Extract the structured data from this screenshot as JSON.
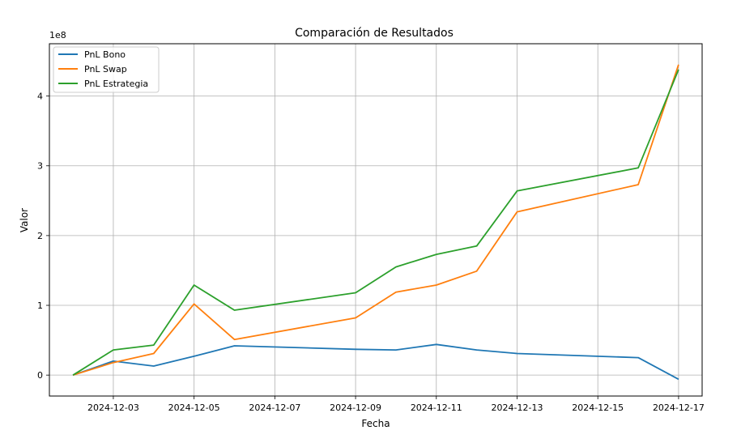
{
  "chart_data": {
    "type": "line",
    "title": "Comparación de Resultados",
    "xlabel": "Fecha",
    "ylabel": "Valor",
    "y_scale_label": "1e8",
    "y_unit_multiplier": 100000000,
    "x": [
      "2024-12-02",
      "2024-12-03",
      "2024-12-04",
      "2024-12-05",
      "2024-12-06",
      "2024-12-09",
      "2024-12-10",
      "2024-12-11",
      "2024-12-12",
      "2024-12-13",
      "2024-12-16",
      "2024-12-17"
    ],
    "xlim": [
      "2024-12-01T10:00",
      "2024-12-17T14:00"
    ],
    "x_ticks": [
      "2024-12-03",
      "2024-12-05",
      "2024-12-07",
      "2024-12-09",
      "2024-12-11",
      "2024-12-13",
      "2024-12-15",
      "2024-12-17"
    ],
    "ylim": [
      -0.3,
      4.75
    ],
    "y_ticks": [
      0,
      1,
      2,
      3,
      4
    ],
    "grid": true,
    "legend_position": "top-left",
    "series": [
      {
        "name": "PnL Bono",
        "color": "#1f77b4",
        "values": [
          0.0,
          0.2,
          0.13,
          0.27,
          0.42,
          0.37,
          0.36,
          0.44,
          0.36,
          0.31,
          0.25,
          -0.06
        ]
      },
      {
        "name": "PnL Swap",
        "color": "#ff7f0e",
        "values": [
          0.0,
          0.18,
          0.31,
          1.02,
          0.51,
          0.82,
          1.19,
          1.29,
          1.49,
          2.34,
          2.73,
          4.45
        ]
      },
      {
        "name": "PnL Estrategia",
        "color": "#2ca02c",
        "values": [
          0.0,
          0.36,
          0.43,
          1.29,
          0.93,
          1.18,
          1.55,
          1.73,
          1.85,
          2.64,
          2.97,
          4.38
        ]
      }
    ]
  }
}
